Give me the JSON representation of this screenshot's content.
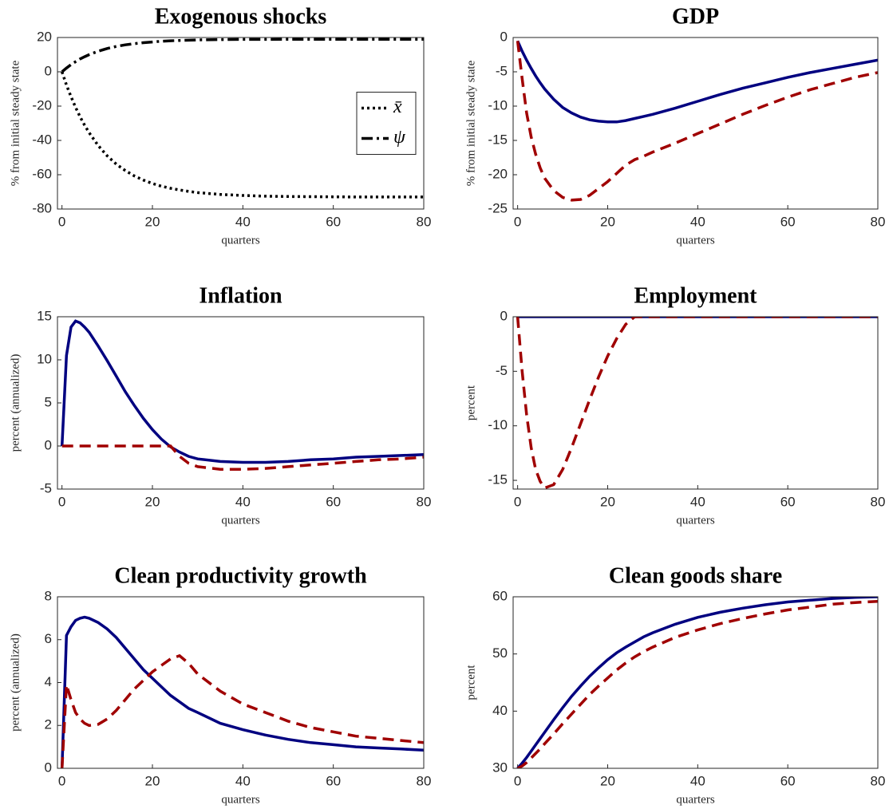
{
  "chart_data": [
    {
      "type": "line",
      "title": "Exogenous shocks",
      "xlabel": "quarters",
      "ylabel": "% from initial steady state",
      "x": [
        0,
        1,
        2,
        3,
        4,
        5,
        6,
        8,
        10,
        12,
        14,
        16,
        18,
        20,
        22,
        24,
        26,
        28,
        30,
        35,
        40,
        45,
        50,
        55,
        60,
        65,
        70,
        75,
        80
      ],
      "xlim": [
        -1,
        80
      ],
      "xticks": [
        0,
        20,
        40,
        60,
        80
      ],
      "ylim": [
        -80,
        20
      ],
      "yticks": [
        -80,
        -60,
        -40,
        -20,
        0,
        20
      ],
      "legend": "east",
      "series": [
        {
          "name": "x̄",
          "color": "#000000",
          "linestyle": "dotted",
          "values": [
            0,
            -7.7,
            -14.5,
            -20.7,
            -26.2,
            -31.1,
            -35.5,
            -43.0,
            -49.0,
            -53.8,
            -57.6,
            -60.7,
            -63.1,
            -65.1,
            -66.7,
            -67.9,
            -68.9,
            -69.7,
            -70.4,
            -71.5,
            -72.1,
            -72.5,
            -72.7,
            -72.8,
            -72.9,
            -73,
            -73,
            -73,
            -73
          ]
        },
        {
          "name": "ψ",
          "color": "#000000",
          "linestyle": "dashdot",
          "values": [
            0,
            2.2,
            4.2,
            5.9,
            7.5,
            8.8,
            10.0,
            12.0,
            13.6,
            14.8,
            15.7,
            16.4,
            17.0,
            17.4,
            17.8,
            18.1,
            18.3,
            18.4,
            18.6,
            18.8,
            18.9,
            18.9,
            19,
            19,
            19,
            19,
            19,
            19,
            19
          ]
        }
      ]
    },
    {
      "type": "line",
      "title": "GDP",
      "xlabel": "quarters",
      "ylabel": "% from initial steady state",
      "x": [
        0,
        1,
        2,
        3,
        4,
        5,
        6,
        8,
        10,
        12,
        14,
        16,
        18,
        20,
        22,
        24,
        26,
        28,
        30,
        35,
        40,
        45,
        50,
        55,
        60,
        65,
        70,
        75,
        80
      ],
      "xlim": [
        -1,
        80
      ],
      "xticks": [
        0,
        20,
        40,
        60,
        80
      ],
      "ylim": [
        -25,
        0
      ],
      "yticks": [
        -25,
        -20,
        -15,
        -10,
        -5,
        0
      ],
      "series": [
        {
          "color": "#000080",
          "linestyle": "solid",
          "values": [
            -0.5,
            -2.0,
            -3.3,
            -4.5,
            -5.6,
            -6.6,
            -7.5,
            -9.0,
            -10.2,
            -11.0,
            -11.6,
            -12.0,
            -12.2,
            -12.3,
            -12.3,
            -12.1,
            -11.8,
            -11.5,
            -11.2,
            -10.3,
            -9.3,
            -8.3,
            -7.4,
            -6.6,
            -5.8,
            -5.1,
            -4.5,
            -3.9,
            -3.3
          ]
        },
        {
          "color": "#a00000",
          "linestyle": "dashed",
          "values": [
            -0.5,
            -6,
            -11,
            -14.5,
            -17,
            -19,
            -20.5,
            -22.3,
            -23.3,
            -23.7,
            -23.6,
            -23,
            -22,
            -21,
            -19.8,
            -18.6,
            -17.8,
            -17.3,
            -16.7,
            -15.4,
            -14.0,
            -12.6,
            -11.2,
            -9.9,
            -8.7,
            -7.6,
            -6.7,
            -5.8,
            -5.1
          ]
        }
      ]
    },
    {
      "type": "line",
      "title": "Inflation",
      "xlabel": "quarters",
      "ylabel": "percent (annualized)",
      "x": [
        0,
        1,
        2,
        3,
        4,
        5,
        6,
        8,
        10,
        12,
        14,
        16,
        18,
        20,
        22,
        24,
        26,
        28,
        30,
        35,
        40,
        45,
        50,
        55,
        60,
        65,
        70,
        75,
        80
      ],
      "xlim": [
        -1,
        80
      ],
      "xticks": [
        0,
        20,
        40,
        60,
        80
      ],
      "ylim": [
        -5,
        15
      ],
      "yticks": [
        -5,
        0,
        5,
        10,
        15
      ],
      "series": [
        {
          "color": "#000080",
          "linestyle": "solid",
          "values": [
            0,
            10.5,
            13.8,
            14.5,
            14.3,
            13.8,
            13.2,
            11.6,
            9.9,
            8.1,
            6.3,
            4.7,
            3.2,
            1.9,
            0.8,
            -0.1,
            -0.7,
            -1.2,
            -1.5,
            -1.8,
            -1.9,
            -1.9,
            -1.8,
            -1.6,
            -1.5,
            -1.3,
            -1.2,
            -1.1,
            -1.0
          ]
        },
        {
          "color": "#a00000",
          "linestyle": "dashed",
          "values": [
            0,
            0,
            0,
            0,
            0,
            0,
            0,
            0,
            0,
            0,
            0,
            0,
            0,
            0,
            0,
            0,
            -1.2,
            -2.0,
            -2.4,
            -2.7,
            -2.7,
            -2.6,
            -2.4,
            -2.2,
            -2.0,
            -1.8,
            -1.6,
            -1.5,
            -1.3
          ]
        }
      ]
    },
    {
      "type": "line",
      "title": "Employment",
      "xlabel": "quarters",
      "ylabel": "percent",
      "x": [
        0,
        1,
        2,
        3,
        4,
        5,
        6,
        8,
        10,
        12,
        14,
        16,
        18,
        20,
        22,
        24,
        26,
        28,
        30,
        35,
        40,
        45,
        50,
        55,
        60,
        65,
        70,
        75,
        80
      ],
      "xlim": [
        -1,
        80
      ],
      "xticks": [
        0,
        20,
        40,
        60,
        80
      ],
      "ylim": [
        -15.8,
        0
      ],
      "yticks": [
        -15,
        -10,
        -5,
        0
      ],
      "series": [
        {
          "color": "#000080",
          "linestyle": "solid",
          "values": [
            0,
            0,
            0,
            0,
            0,
            0,
            0,
            0,
            0,
            0,
            0,
            0,
            0,
            0,
            0,
            0,
            0,
            0,
            0,
            0,
            0,
            0,
            0,
            0,
            0,
            0,
            0,
            0,
            0
          ]
        },
        {
          "color": "#a00000",
          "linestyle": "dashed",
          "values": [
            0,
            -5,
            -9,
            -12,
            -14,
            -15.1,
            -15.7,
            -15.4,
            -14,
            -12,
            -9.8,
            -7.6,
            -5.5,
            -3.6,
            -2,
            -0.7,
            0,
            0,
            0,
            0,
            0,
            0,
            0,
            0,
            0,
            0,
            0,
            0,
            0
          ]
        }
      ]
    },
    {
      "type": "line",
      "title": "Clean productivity growth",
      "xlabel": "quarters",
      "ylabel": "percent (annualized)",
      "x": [
        0,
        1,
        2,
        3,
        4,
        5,
        6,
        8,
        10,
        12,
        14,
        16,
        18,
        20,
        22,
        24,
        26,
        28,
        30,
        35,
        40,
        45,
        50,
        55,
        60,
        65,
        70,
        75,
        80
      ],
      "xlim": [
        -1,
        80
      ],
      "xticks": [
        0,
        20,
        40,
        60,
        80
      ],
      "ylim": [
        0,
        8
      ],
      "yticks": [
        0,
        2,
        4,
        6,
        8
      ],
      "series": [
        {
          "color": "#000080",
          "linestyle": "solid",
          "values": [
            0,
            6.2,
            6.6,
            6.9,
            7.0,
            7.05,
            7.0,
            6.8,
            6.5,
            6.1,
            5.6,
            5.1,
            4.6,
            4.2,
            3.8,
            3.4,
            3.1,
            2.8,
            2.6,
            2.1,
            1.8,
            1.55,
            1.35,
            1.2,
            1.1,
            1.0,
            0.95,
            0.9,
            0.85
          ]
        },
        {
          "color": "#a00000",
          "linestyle": "dashed",
          "values": [
            0,
            3.9,
            3.2,
            2.6,
            2.3,
            2.1,
            2.0,
            2.05,
            2.3,
            2.7,
            3.2,
            3.7,
            4.1,
            4.5,
            4.8,
            5.1,
            5.25,
            4.9,
            4.4,
            3.6,
            3.0,
            2.6,
            2.2,
            1.9,
            1.7,
            1.5,
            1.4,
            1.3,
            1.2
          ]
        }
      ]
    },
    {
      "type": "line",
      "title": "Clean goods share",
      "xlabel": "quarters",
      "ylabel": "percent",
      "x": [
        0,
        1,
        2,
        3,
        4,
        5,
        6,
        8,
        10,
        12,
        14,
        16,
        18,
        20,
        22,
        24,
        26,
        28,
        30,
        35,
        40,
        45,
        50,
        55,
        60,
        65,
        70,
        75,
        80
      ],
      "xlim": [
        -1,
        80
      ],
      "xticks": [
        0,
        20,
        40,
        60,
        80
      ],
      "ylim": [
        30,
        60
      ],
      "yticks": [
        30,
        40,
        50,
        60
      ],
      "series": [
        {
          "color": "#000080",
          "linestyle": "solid",
          "values": [
            30,
            30.9,
            31.9,
            33,
            34.1,
            35.2,
            36.3,
            38.5,
            40.6,
            42.6,
            44.4,
            46.1,
            47.6,
            49,
            50.2,
            51.2,
            52.1,
            53,
            53.7,
            55.2,
            56.4,
            57.3,
            58,
            58.6,
            59.1,
            59.4,
            59.7,
            59.9,
            60
          ]
        },
        {
          "color": "#a00000",
          "linestyle": "dashed",
          "values": [
            30,
            30.4,
            31,
            31.8,
            32.6,
            33.4,
            34.3,
            36,
            37.8,
            39.5,
            41.2,
            42.9,
            44.4,
            45.8,
            47.2,
            48.4,
            49.5,
            50.4,
            51.2,
            52.9,
            54.2,
            55.3,
            56.2,
            57,
            57.7,
            58.2,
            58.7,
            59,
            59.2
          ]
        }
      ]
    }
  ]
}
